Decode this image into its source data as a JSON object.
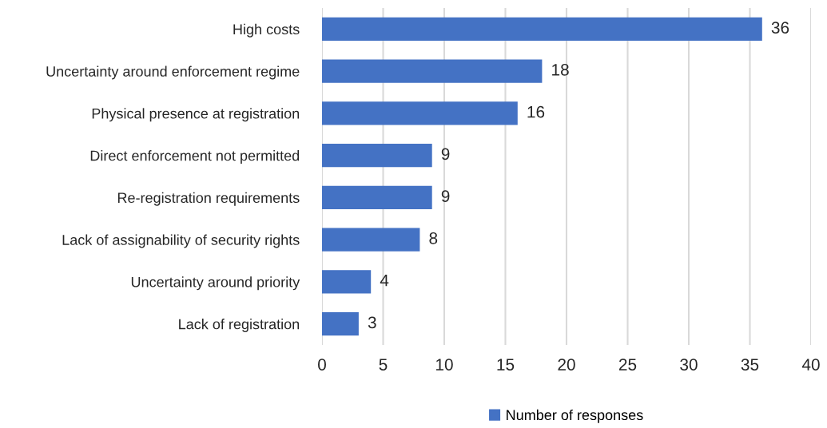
{
  "chart_data": {
    "type": "bar",
    "orientation": "horizontal",
    "categories": [
      "High costs",
      "Uncertainty around enforcement regime",
      "Physical presence at registration",
      "Direct enforcement not permitted",
      "Re-registration requirements",
      "Lack of assignability of security rights",
      "Uncertainty around priority",
      "Lack of registration"
    ],
    "series": [
      {
        "name": "Number of responses",
        "color": "#4472c4",
        "values": [
          36,
          18,
          16,
          9,
          9,
          8,
          4,
          3
        ]
      }
    ],
    "xlim": [
      0,
      40
    ],
    "xticks": [
      0,
      5,
      10,
      15,
      20,
      25,
      30,
      35,
      40
    ],
    "grid": "x",
    "legend": "bottom",
    "data_labels": true
  }
}
